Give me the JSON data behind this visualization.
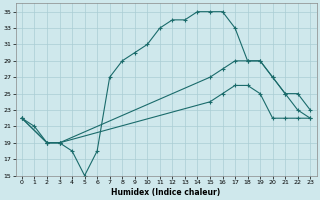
{
  "xlabel": "Humidex (Indice chaleur)",
  "bg_color": "#cfe8ec",
  "grid_color": "#aacdd4",
  "line_color": "#1a6b6b",
  "xlim": [
    -0.5,
    23.5
  ],
  "ylim": [
    15,
    36
  ],
  "xticks": [
    0,
    1,
    2,
    3,
    4,
    5,
    6,
    7,
    8,
    9,
    10,
    11,
    12,
    13,
    14,
    15,
    16,
    17,
    18,
    19,
    20,
    21,
    22,
    23
  ],
  "yticks": [
    15,
    17,
    19,
    21,
    23,
    25,
    27,
    29,
    31,
    33,
    35
  ],
  "line1_x": [
    0,
    1,
    2,
    3,
    4,
    5,
    6,
    7,
    8,
    9,
    10,
    11,
    12,
    13,
    14,
    15,
    16,
    17,
    18,
    19,
    20,
    21,
    22,
    23
  ],
  "line1_y": [
    22,
    21,
    19,
    19,
    18,
    15,
    18,
    27,
    29,
    30,
    31,
    33,
    34,
    34,
    35,
    35,
    35,
    33,
    29,
    29,
    27,
    25,
    23,
    22
  ],
  "line2_x": [
    0,
    2,
    3,
    15,
    16,
    17,
    18,
    19,
    20,
    21,
    22,
    23
  ],
  "line2_y": [
    22,
    19,
    19,
    27,
    28,
    29,
    29,
    29,
    27,
    25,
    25,
    23
  ],
  "line3_x": [
    0,
    2,
    3,
    15,
    16,
    17,
    18,
    19,
    20,
    21,
    22,
    23
  ],
  "line3_y": [
    22,
    19,
    19,
    24,
    25,
    26,
    26,
    25,
    22,
    22,
    22,
    22
  ]
}
